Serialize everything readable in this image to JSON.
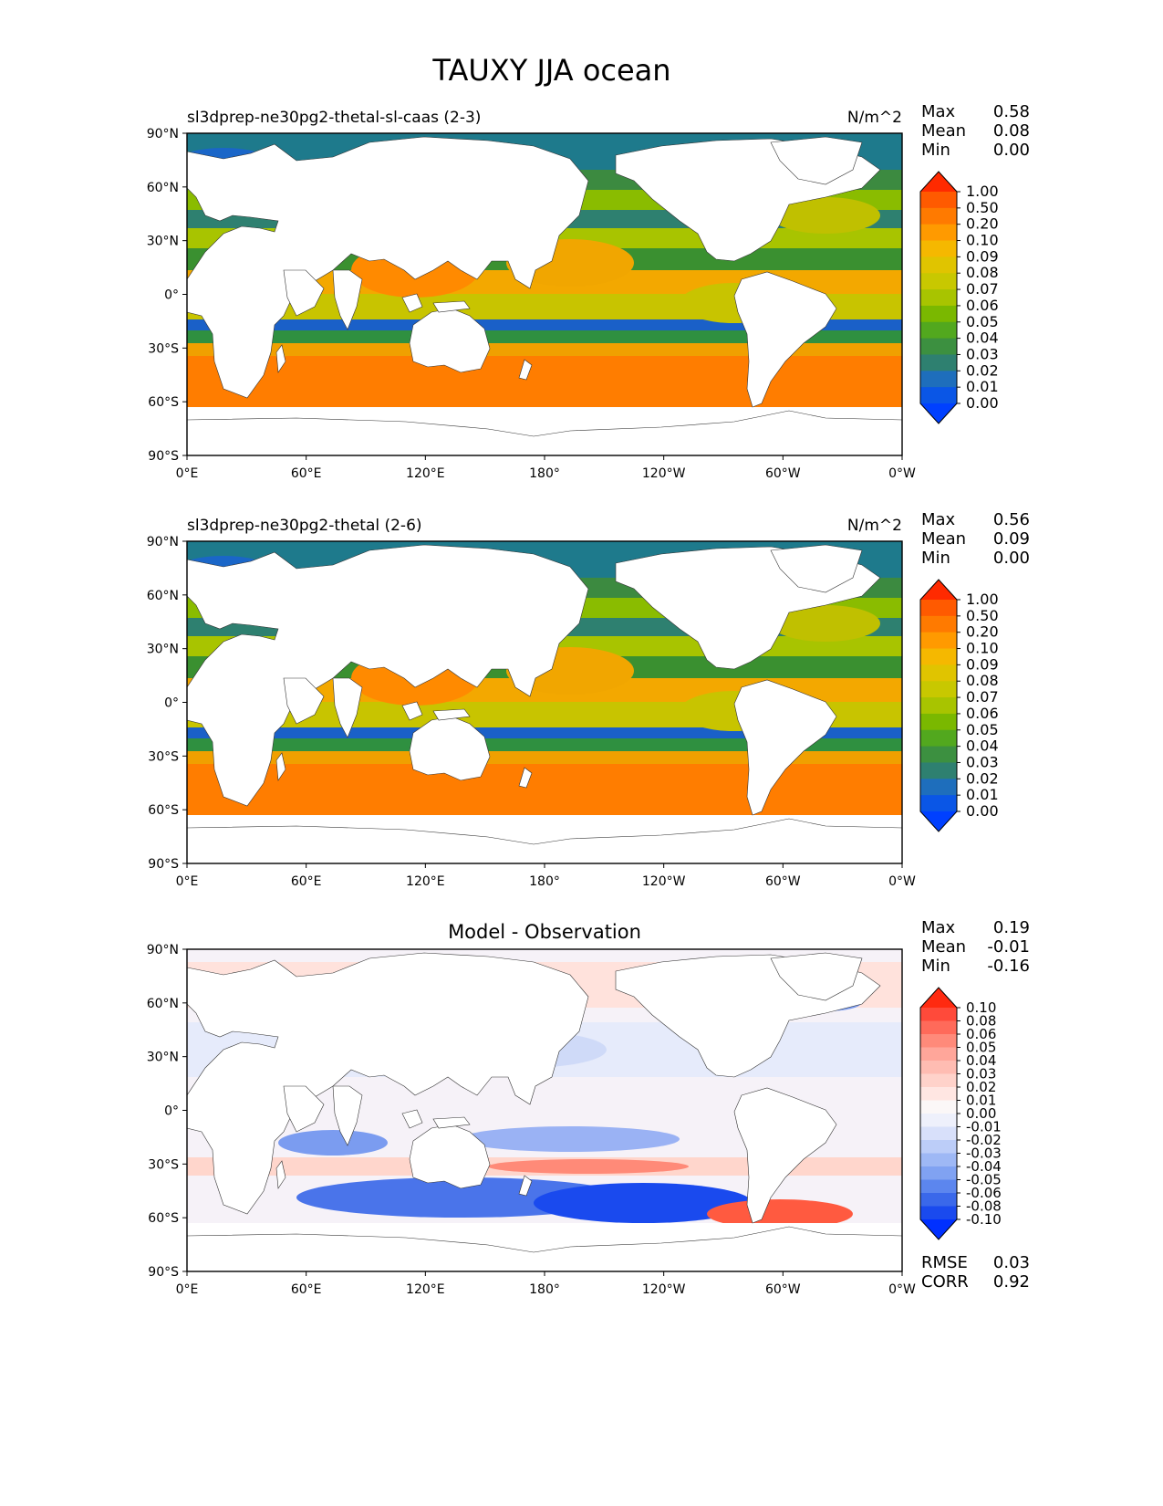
{
  "title": "TAUXY JJA ocean",
  "x_ticks": [
    "0°E",
    "60°E",
    "120°E",
    "180°",
    "120°W",
    "60°W",
    "0°W"
  ],
  "y_ticks": [
    "90°N",
    "60°N",
    "30°N",
    "0°",
    "30°S",
    "60°S",
    "90°S"
  ],
  "panels": [
    {
      "id": "test",
      "title_left": "sl3dprep-ne30pg2-thetal-sl-caas (2-3)",
      "title_center": "",
      "units": "N/m^2",
      "stats": [
        {
          "label": "Max",
          "value": "0.58"
        },
        {
          "label": "Mean",
          "value": "0.08"
        },
        {
          "label": "Min",
          "value": "0.00"
        }
      ],
      "colorbar": {
        "levels": [
          "1.00",
          "0.50",
          "0.20",
          "0.10",
          "0.09",
          "0.08",
          "0.07",
          "0.06",
          "0.05",
          "0.04",
          "0.03",
          "0.02",
          "0.01",
          "0.00"
        ],
        "colors": [
          "#ff2a00",
          "#ff5a00",
          "#ff7a00",
          "#ff9a00",
          "#f5b800",
          "#e0c400",
          "#c8c800",
          "#a8c400",
          "#7ab800",
          "#52a81e",
          "#3c9040",
          "#2e8070",
          "#1e6ebc",
          "#0a56e6",
          "#0040ff"
        ]
      },
      "bottom_stats": []
    },
    {
      "id": "reference",
      "title_left": "sl3dprep-ne30pg2-thetal (2-6)",
      "title_center": "",
      "units": "N/m^2",
      "stats": [
        {
          "label": "Max",
          "value": "0.56"
        },
        {
          "label": "Mean",
          "value": "0.09"
        },
        {
          "label": "Min",
          "value": "0.00"
        }
      ],
      "colorbar": {
        "levels": [
          "1.00",
          "0.50",
          "0.20",
          "0.10",
          "0.09",
          "0.08",
          "0.07",
          "0.06",
          "0.05",
          "0.04",
          "0.03",
          "0.02",
          "0.01",
          "0.00"
        ],
        "colors": [
          "#ff2a00",
          "#ff5a00",
          "#ff7a00",
          "#ff9a00",
          "#f5b800",
          "#e0c400",
          "#c8c800",
          "#a8c400",
          "#7ab800",
          "#52a81e",
          "#3c9040",
          "#2e8070",
          "#1e6ebc",
          "#0a56e6",
          "#0040ff"
        ]
      },
      "bottom_stats": []
    },
    {
      "id": "difference",
      "title_left": "",
      "title_center": "Model - Observation",
      "units": "",
      "stats": [
        {
          "label": "Max",
          "value": "0.19"
        },
        {
          "label": "Mean",
          "value": "-0.01"
        },
        {
          "label": "Min",
          "value": "-0.16"
        }
      ],
      "colorbar": {
        "levels": [
          "0.10",
          "0.08",
          "0.06",
          "0.05",
          "0.04",
          "0.03",
          "0.02",
          "0.01",
          "0.00",
          "-0.01",
          "-0.02",
          "-0.03",
          "-0.04",
          "-0.05",
          "-0.06",
          "-0.08",
          "-0.10"
        ],
        "colors": [
          "#ff2a10",
          "#ff4a3a",
          "#ff6a5a",
          "#ff8a7a",
          "#ffa69a",
          "#ffbcb2",
          "#ffd2ca",
          "#ffe6e2",
          "#fbf7f7",
          "#eef0fb",
          "#d8e0fa",
          "#bccdf8",
          "#9eb8f5",
          "#80a2f2",
          "#5c86ee",
          "#3a68ea",
          "#1a4aee",
          "#0030ff"
        ]
      },
      "bottom_stats": [
        {
          "label": "RMSE",
          "value": "0.03"
        },
        {
          "label": "CORR",
          "value": "0.92"
        }
      ]
    }
  ]
}
